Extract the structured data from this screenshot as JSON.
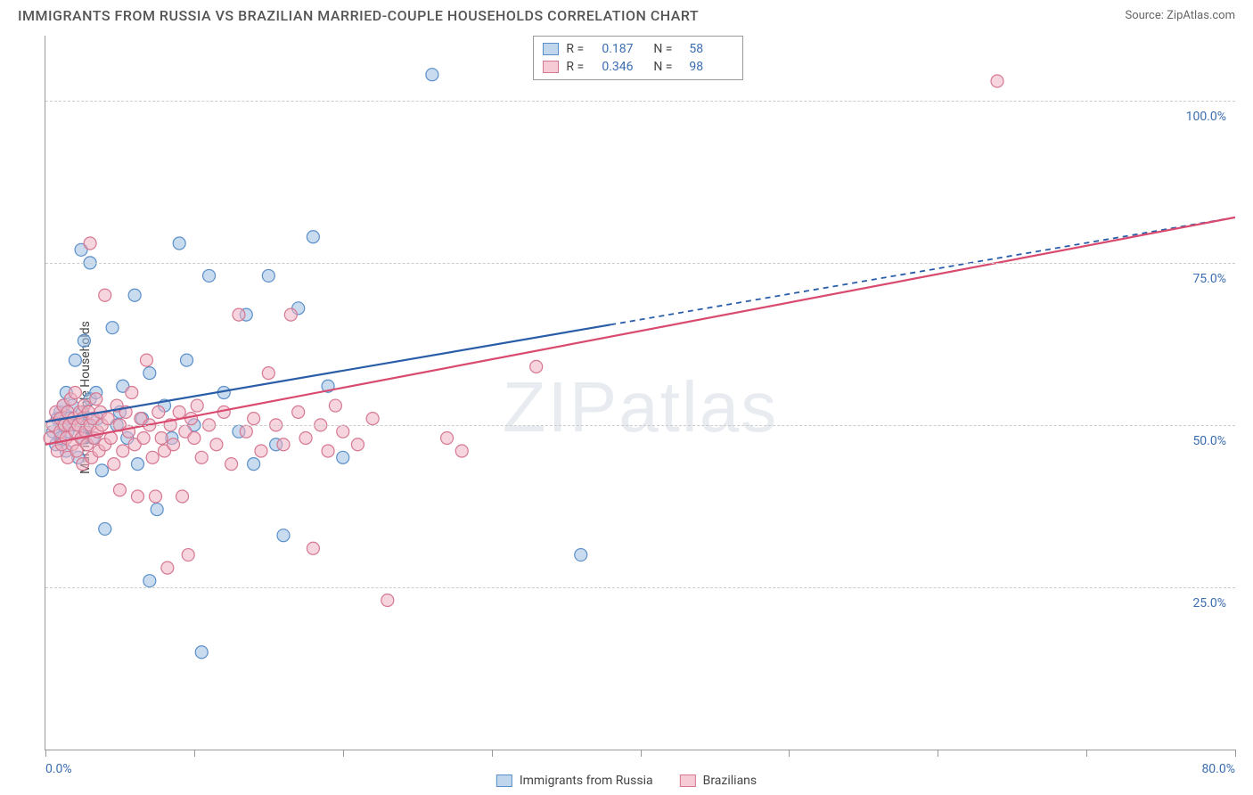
{
  "title": "IMMIGRANTS FROM RUSSIA VS BRAZILIAN MARRIED-COUPLE HOUSEHOLDS CORRELATION CHART",
  "source_label": "Source: ",
  "source_name": "ZipAtlas.com",
  "watermark_a": "ZIP",
  "watermark_b": "atlas",
  "y_axis_label": "Married-couple Households",
  "chart": {
    "type": "scatter",
    "xlim": [
      0,
      80
    ],
    "ylim": [
      0,
      110
    ],
    "x_ticks": [
      0,
      10,
      20,
      30,
      40,
      50,
      60,
      70,
      80
    ],
    "y_ticks": [
      25,
      50,
      75,
      100
    ],
    "x_tick_labels": {
      "0": "0.0%",
      "80": "80.0%"
    },
    "y_tick_labels": {
      "25": "25.0%",
      "50": "50.0%",
      "75": "75.0%",
      "100": "100.0%"
    },
    "grid_color": "#cccccc",
    "axis_color": "#999999",
    "point_radius": 7,
    "point_opacity": 0.55,
    "series": [
      {
        "name": "Immigrants from Russia",
        "color_fill": "#9bbde2",
        "color_stroke": "#5a8fc9",
        "line_color": "#2a5da8",
        "R": "0.187",
        "N": "58",
        "trend": {
          "x1": 0,
          "y1": 50.5,
          "x2": 80,
          "y2": 82,
          "solid_until_x": 38
        },
        "points": [
          [
            0.5,
            49
          ],
          [
            0.7,
            47
          ],
          [
            0.8,
            51
          ],
          [
            1,
            52
          ],
          [
            1,
            48
          ],
          [
            1.2,
            53
          ],
          [
            1.2,
            50
          ],
          [
            1.4,
            55
          ],
          [
            1.4,
            46
          ],
          [
            1.5,
            49
          ],
          [
            1.6,
            51
          ],
          [
            1.8,
            53
          ],
          [
            2,
            60
          ],
          [
            2,
            50
          ],
          [
            2.2,
            45
          ],
          [
            2.4,
            77
          ],
          [
            2.5,
            52
          ],
          [
            2.5,
            48
          ],
          [
            2.6,
            63
          ],
          [
            2.8,
            50
          ],
          [
            3,
            75
          ],
          [
            3,
            54
          ],
          [
            3.2,
            48
          ],
          [
            3.4,
            55
          ],
          [
            3.5,
            51
          ],
          [
            3.8,
            43
          ],
          [
            4,
            34
          ],
          [
            4.5,
            65
          ],
          [
            4.8,
            50
          ],
          [
            5,
            52
          ],
          [
            5.2,
            56
          ],
          [
            5.5,
            48
          ],
          [
            6,
            70
          ],
          [
            6.2,
            44
          ],
          [
            6.5,
            51
          ],
          [
            7,
            58
          ],
          [
            7,
            26
          ],
          [
            7.5,
            37
          ],
          [
            8,
            53
          ],
          [
            8.5,
            48
          ],
          [
            9,
            78
          ],
          [
            9.5,
            60
          ],
          [
            10,
            50
          ],
          [
            10.5,
            15
          ],
          [
            11,
            73
          ],
          [
            12,
            55
          ],
          [
            13,
            49
          ],
          [
            13.5,
            67
          ],
          [
            14,
            44
          ],
          [
            15,
            73
          ],
          [
            15.5,
            47
          ],
          [
            16,
            33
          ],
          [
            17,
            68
          ],
          [
            18,
            79
          ],
          [
            19,
            56
          ],
          [
            20,
            45
          ],
          [
            26,
            104
          ],
          [
            36,
            30
          ]
        ]
      },
      {
        "name": "Brazilians",
        "color_fill": "#f0b3c3",
        "color_stroke": "#d67891",
        "line_color": "#d94a6f",
        "R": "0.346",
        "N": "98",
        "trend": {
          "x1": 0,
          "y1": 47,
          "x2": 80,
          "y2": 82,
          "solid_until_x": 80
        },
        "points": [
          [
            0.3,
            48
          ],
          [
            0.5,
            50
          ],
          [
            0.7,
            52
          ],
          [
            0.8,
            46
          ],
          [
            1,
            49
          ],
          [
            1,
            51
          ],
          [
            1.1,
            47
          ],
          [
            1.2,
            53
          ],
          [
            1.3,
            50
          ],
          [
            1.4,
            48
          ],
          [
            1.5,
            52
          ],
          [
            1.5,
            45
          ],
          [
            1.6,
            50
          ],
          [
            1.7,
            54
          ],
          [
            1.8,
            47
          ],
          [
            1.9,
            51
          ],
          [
            2,
            49
          ],
          [
            2,
            55
          ],
          [
            2.1,
            46
          ],
          [
            2.2,
            50
          ],
          [
            2.3,
            52
          ],
          [
            2.4,
            48
          ],
          [
            2.5,
            51
          ],
          [
            2.5,
            44
          ],
          [
            2.6,
            53
          ],
          [
            2.7,
            49
          ],
          [
            2.8,
            47
          ],
          [
            2.9,
            52
          ],
          [
            3,
            50
          ],
          [
            3,
            78
          ],
          [
            3.1,
            45
          ],
          [
            3.2,
            51
          ],
          [
            3.3,
            48
          ],
          [
            3.4,
            54
          ],
          [
            3.5,
            49
          ],
          [
            3.6,
            46
          ],
          [
            3.7,
            52
          ],
          [
            3.8,
            50
          ],
          [
            4,
            47
          ],
          [
            4,
            70
          ],
          [
            4.2,
            51
          ],
          [
            4.4,
            48
          ],
          [
            4.6,
            44
          ],
          [
            4.8,
            53
          ],
          [
            5,
            40
          ],
          [
            5,
            50
          ],
          [
            5.2,
            46
          ],
          [
            5.4,
            52
          ],
          [
            5.6,
            49
          ],
          [
            5.8,
            55
          ],
          [
            6,
            47
          ],
          [
            6.2,
            39
          ],
          [
            6.4,
            51
          ],
          [
            6.6,
            48
          ],
          [
            6.8,
            60
          ],
          [
            7,
            50
          ],
          [
            7.2,
            45
          ],
          [
            7.4,
            39
          ],
          [
            7.6,
            52
          ],
          [
            7.8,
            48
          ],
          [
            8,
            46
          ],
          [
            8.2,
            28
          ],
          [
            8.4,
            50
          ],
          [
            8.6,
            47
          ],
          [
            9,
            52
          ],
          [
            9.2,
            39
          ],
          [
            9.4,
            49
          ],
          [
            9.6,
            30
          ],
          [
            9.8,
            51
          ],
          [
            10,
            48
          ],
          [
            10.2,
            53
          ],
          [
            10.5,
            45
          ],
          [
            11,
            50
          ],
          [
            11.5,
            47
          ],
          [
            12,
            52
          ],
          [
            12.5,
            44
          ],
          [
            13,
            67
          ],
          [
            13.5,
            49
          ],
          [
            14,
            51
          ],
          [
            14.5,
            46
          ],
          [
            15,
            58
          ],
          [
            15.5,
            50
          ],
          [
            16,
            47
          ],
          [
            16.5,
            67
          ],
          [
            17,
            52
          ],
          [
            17.5,
            48
          ],
          [
            18,
            31
          ],
          [
            18.5,
            50
          ],
          [
            19,
            46
          ],
          [
            19.5,
            53
          ],
          [
            20,
            49
          ],
          [
            21,
            47
          ],
          [
            22,
            51
          ],
          [
            23,
            23
          ],
          [
            27,
            48
          ],
          [
            28,
            46
          ],
          [
            33,
            59
          ],
          [
            64,
            103
          ]
        ]
      }
    ]
  },
  "legend_top": {
    "r_label": "R =",
    "n_label": "N ="
  },
  "colors": {
    "label_blue": "#3b6db0",
    "text_gray": "#555555"
  }
}
